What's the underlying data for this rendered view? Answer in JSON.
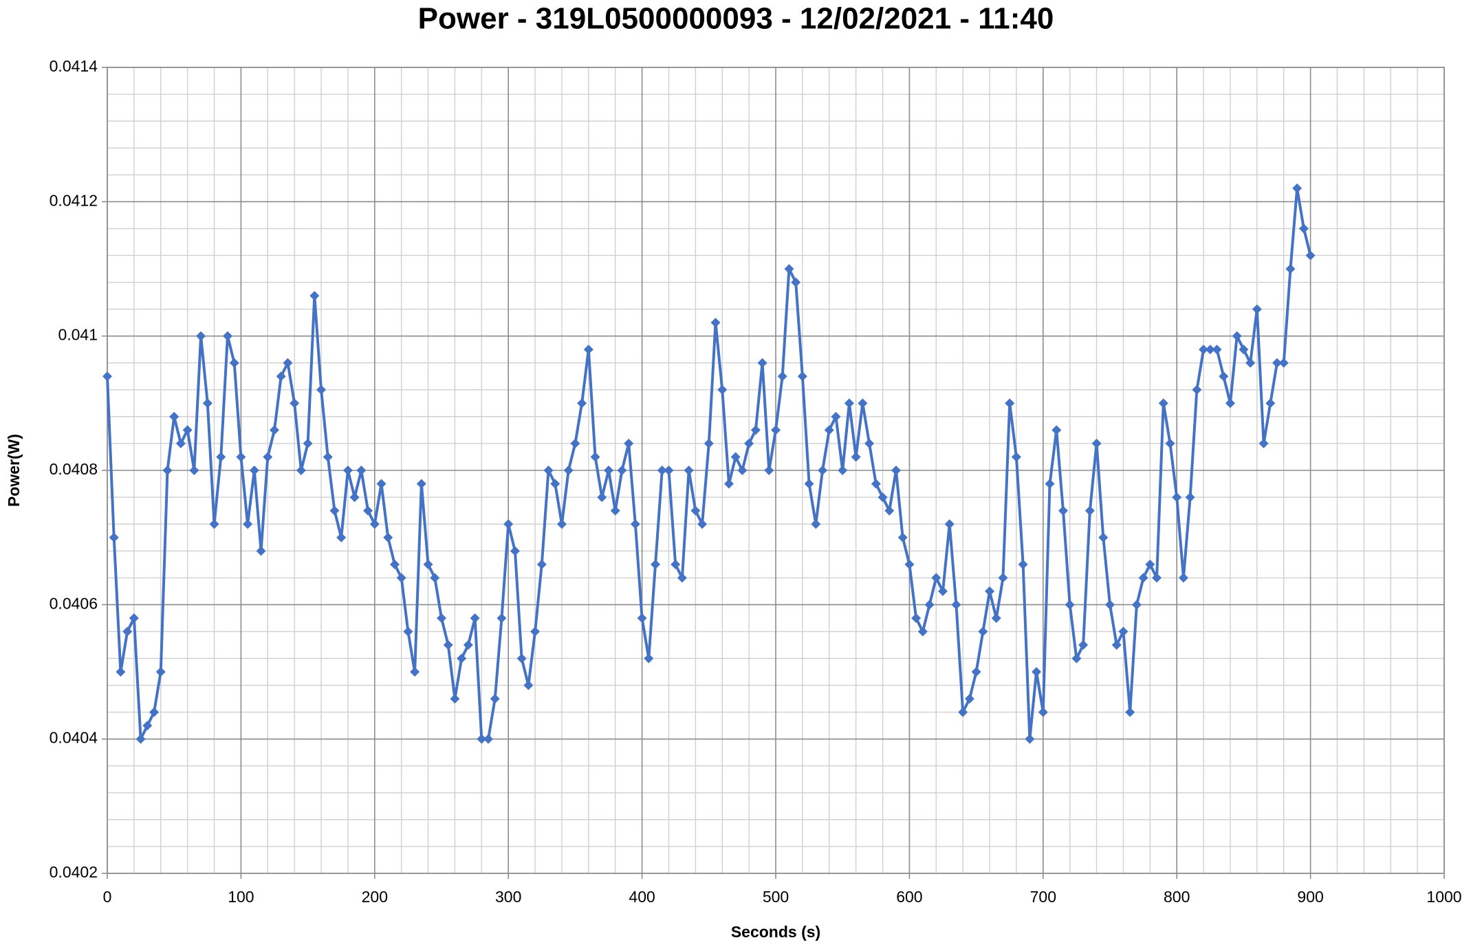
{
  "chart_data": {
    "type": "line",
    "title": "Power - 319L0500000093 - 12/02/2021 - 11:40",
    "x_label": "Seconds (s)",
    "y_label": "Power(W)",
    "xlim": [
      0,
      1000
    ],
    "xticks": [
      0,
      100,
      200,
      300,
      400,
      500,
      600,
      700,
      800,
      900,
      1000
    ],
    "ylim": [
      0.0402,
      0.0414
    ],
    "yticks": [
      0.0402,
      0.0404,
      0.0406,
      0.0408,
      0.041,
      0.0412,
      0.0414
    ],
    "grid": true,
    "minor_grid_divisions": 5,
    "x": [
      0,
      5,
      10,
      15,
      20,
      25,
      30,
      35,
      40,
      45,
      50,
      55,
      60,
      65,
      70,
      75,
      80,
      85,
      90,
      95,
      100,
      105,
      110,
      115,
      120,
      125,
      130,
      135,
      140,
      145,
      150,
      155,
      160,
      165,
      170,
      175,
      180,
      185,
      190,
      195,
      200,
      205,
      210,
      215,
      220,
      225,
      230,
      235,
      240,
      245,
      250,
      255,
      260,
      265,
      270,
      275,
      280,
      285,
      290,
      295,
      300,
      305,
      310,
      315,
      320,
      325,
      330,
      335,
      340,
      345,
      350,
      355,
      360,
      365,
      370,
      375,
      380,
      385,
      390,
      395,
      400,
      405,
      410,
      415,
      420,
      425,
      430,
      435,
      440,
      445,
      450,
      455,
      460,
      465,
      470,
      475,
      480,
      485,
      490,
      495,
      500,
      505,
      510,
      515,
      520,
      525,
      530,
      535,
      540,
      545,
      550,
      555,
      560,
      565,
      570,
      575,
      580,
      585,
      590,
      595,
      600,
      605,
      610,
      615,
      620,
      625,
      630,
      635,
      640,
      645,
      650,
      655,
      660,
      665,
      670,
      675,
      680,
      685,
      690,
      695,
      700,
      705,
      710,
      715,
      720,
      725,
      730,
      735,
      740,
      745,
      750,
      755,
      760,
      765,
      770,
      775,
      780,
      785,
      790,
      795,
      800,
      805,
      810,
      815,
      820,
      825,
      830,
      835,
      840,
      845,
      850,
      855,
      860,
      865,
      870,
      875,
      880,
      885,
      890,
      895,
      900
    ],
    "series": [
      {
        "name": "Power",
        "color": "#4472c4",
        "values": [
          0.04094,
          0.0407,
          0.0405,
          0.04056,
          0.04058,
          0.0404,
          0.04042,
          0.04044,
          0.0405,
          0.0408,
          0.04088,
          0.04084,
          0.04086,
          0.0408,
          0.041,
          0.0409,
          0.04072,
          0.04082,
          0.041,
          0.04096,
          0.04082,
          0.04072,
          0.0408,
          0.04068,
          0.04082,
          0.04086,
          0.04094,
          0.04096,
          0.0409,
          0.0408,
          0.04084,
          0.04106,
          0.04092,
          0.04082,
          0.04074,
          0.0407,
          0.0408,
          0.04076,
          0.0408,
          0.04074,
          0.04072,
          0.04078,
          0.0407,
          0.04066,
          0.04064,
          0.04056,
          0.0405,
          0.04078,
          0.04066,
          0.04064,
          0.04058,
          0.04054,
          0.04046,
          0.04052,
          0.04054,
          0.04058,
          0.0404,
          0.0404,
          0.04046,
          0.04058,
          0.04072,
          0.04068,
          0.04052,
          0.04048,
          0.04056,
          0.04066,
          0.0408,
          0.04078,
          0.04072,
          0.0408,
          0.04084,
          0.0409,
          0.04098,
          0.04082,
          0.04076,
          0.0408,
          0.04074,
          0.0408,
          0.04084,
          0.04072,
          0.04058,
          0.04052,
          0.04066,
          0.0408,
          0.0408,
          0.04066,
          0.04064,
          0.0408,
          0.04074,
          0.04072,
          0.04084,
          0.04102,
          0.04092,
          0.04078,
          0.04082,
          0.0408,
          0.04084,
          0.04086,
          0.04096,
          0.0408,
          0.04086,
          0.04094,
          0.0411,
          0.04108,
          0.04094,
          0.04078,
          0.04072,
          0.0408,
          0.04086,
          0.04088,
          0.0408,
          0.0409,
          0.04082,
          0.0409,
          0.04084,
          0.04078,
          0.04076,
          0.04074,
          0.0408,
          0.0407,
          0.04066,
          0.04058,
          0.04056,
          0.0406,
          0.04064,
          0.04062,
          0.04072,
          0.0406,
          0.04044,
          0.04046,
          0.0405,
          0.04056,
          0.04062,
          0.04058,
          0.04064,
          0.0409,
          0.04082,
          0.04066,
          0.0404,
          0.0405,
          0.04044,
          0.04078,
          0.04086,
          0.04074,
          0.0406,
          0.04052,
          0.04054,
          0.04074,
          0.04084,
          0.0407,
          0.0406,
          0.04054,
          0.04056,
          0.04044,
          0.0406,
          0.04064,
          0.04066,
          0.04064,
          0.0409,
          0.04084,
          0.04076,
          0.04064,
          0.04076,
          0.04092,
          0.04098,
          0.04098,
          0.04098,
          0.04094,
          0.0409,
          0.041,
          0.04098,
          0.04096,
          0.04104,
          0.04084,
          0.0409,
          0.04096,
          0.04096,
          0.0411,
          0.04122,
          0.04116,
          0.04112
        ]
      }
    ]
  }
}
